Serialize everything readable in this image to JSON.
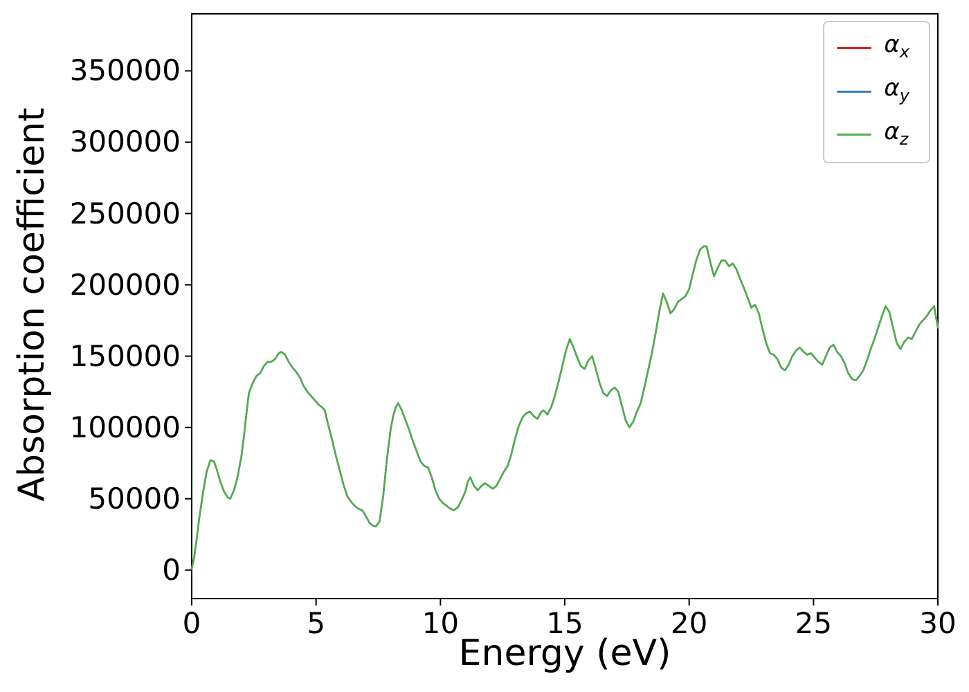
{
  "chart_data": {
    "type": "line",
    "title": "",
    "xlabel": "Energy (eV)",
    "ylabel": "Absorption coefficient",
    "xlim": [
      0,
      30
    ],
    "ylim": [
      -20000,
      390000
    ],
    "grid": false,
    "frame_color": "#000000",
    "background_color": "#ffffff",
    "legend_position": "upper right",
    "note": "All three series (alpha_x, alpha_y, alpha_z) coincide exactly; only the green alpha_z curve (drawn last) is visible.",
    "xticks": {
      "values": [
        0,
        5,
        10,
        15,
        20,
        25,
        30
      ],
      "labels": [
        "0",
        "5",
        "10",
        "15",
        "20",
        "25",
        "30"
      ]
    },
    "yticks": {
      "values": [
        0,
        50000,
        100000,
        150000,
        200000,
        250000,
        300000,
        350000
      ],
      "labels": [
        "0",
        "50000",
        "100000",
        "150000",
        "200000",
        "250000",
        "300000",
        "350000"
      ]
    },
    "series": [
      {
        "name": "alpha_x",
        "legend_symbol": "α",
        "legend_subscript": "x",
        "color": "#e41a1c",
        "values_shared_with": "chart_data.y"
      },
      {
        "name": "alpha_y",
        "legend_symbol": "α",
        "legend_subscript": "y",
        "color": "#377eb8",
        "values_shared_with": "chart_data.y"
      },
      {
        "name": "alpha_z",
        "legend_symbol": "α",
        "legend_subscript": "z",
        "color": "#4daf4a",
        "values_shared_with": "chart_data.y"
      }
    ],
    "x": [
      0,
      0.1,
      0.2,
      0.3,
      0.45,
      0.6,
      0.75,
      0.9,
      1.0,
      1.15,
      1.3,
      1.45,
      1.55,
      1.7,
      1.85,
      2.0,
      2.1,
      2.2,
      2.3,
      2.45,
      2.6,
      2.75,
      2.9,
      3.05,
      3.2,
      3.35,
      3.5,
      3.6,
      3.75,
      3.9,
      4.05,
      4.2,
      4.35,
      4.5,
      4.65,
      4.8,
      4.95,
      5.1,
      5.25,
      5.35,
      5.5,
      5.65,
      5.8,
      5.95,
      6.1,
      6.25,
      6.4,
      6.55,
      6.7,
      6.85,
      7.0,
      7.15,
      7.3,
      7.4,
      7.55,
      7.7,
      7.85,
      8.0,
      8.1,
      8.2,
      8.3,
      8.45,
      8.6,
      8.75,
      8.9,
      9.05,
      9.2,
      9.35,
      9.5,
      9.65,
      9.8,
      9.95,
      10.1,
      10.25,
      10.4,
      10.55,
      10.7,
      10.85,
      11.0,
      11.1,
      11.2,
      11.35,
      11.5,
      11.65,
      11.8,
      11.95,
      12.1,
      12.25,
      12.4,
      12.55,
      12.7,
      12.85,
      13.0,
      13.15,
      13.3,
      13.45,
      13.6,
      13.75,
      13.9,
      14.05,
      14.15,
      14.3,
      14.45,
      14.6,
      14.75,
      14.9,
      15.05,
      15.2,
      15.35,
      15.5,
      15.65,
      15.8,
      15.95,
      16.1,
      16.25,
      16.4,
      16.55,
      16.7,
      16.85,
      17.0,
      17.15,
      17.3,
      17.45,
      17.6,
      17.75,
      17.9,
      18.05,
      18.2,
      18.35,
      18.5,
      18.65,
      18.8,
      18.95,
      19.1,
      19.25,
      19.4,
      19.55,
      19.7,
      19.85,
      20.0,
      20.15,
      20.3,
      20.45,
      20.6,
      20.7,
      20.85,
      21.0,
      21.15,
      21.3,
      21.45,
      21.6,
      21.75,
      21.9,
      22.05,
      22.2,
      22.35,
      22.5,
      22.65,
      22.8,
      22.95,
      23.1,
      23.25,
      23.4,
      23.55,
      23.7,
      23.85,
      24.0,
      24.15,
      24.3,
      24.45,
      24.6,
      24.75,
      24.9,
      25.05,
      25.2,
      25.35,
      25.5,
      25.65,
      25.8,
      25.95,
      26.1,
      26.25,
      26.4,
      26.55,
      26.7,
      26.85,
      27.0,
      27.15,
      27.3,
      27.45,
      27.6,
      27.75,
      27.9,
      28.05,
      28.2,
      28.35,
      28.5,
      28.65,
      28.8,
      28.95,
      29.1,
      29.25,
      29.4,
      29.55,
      29.7,
      29.85,
      30.0
    ],
    "y": [
      1000,
      9000,
      22000,
      36000,
      54000,
      69000,
      77000,
      76000,
      71000,
      62000,
      55000,
      51000,
      50000,
      56000,
      66000,
      80000,
      94000,
      110000,
      124000,
      131000,
      136000,
      138000,
      143000,
      146000,
      146000,
      148000,
      152000,
      153000,
      151000,
      146000,
      142000,
      139000,
      135000,
      129000,
      125000,
      122000,
      119000,
      116000,
      114000,
      112000,
      101000,
      91000,
      80000,
      70000,
      60000,
      52000,
      48000,
      45000,
      43000,
      42000,
      38000,
      33000,
      31000,
      30500,
      34000,
      52000,
      78000,
      99000,
      108000,
      114000,
      117000,
      112000,
      105000,
      98000,
      90000,
      83000,
      76000,
      73000,
      72000,
      65000,
      56000,
      50000,
      47000,
      45000,
      43000,
      42000,
      44000,
      49000,
      55000,
      62000,
      65000,
      59000,
      56000,
      59000,
      61000,
      59000,
      57000,
      59000,
      64000,
      69000,
      73000,
      81000,
      92000,
      101000,
      107000,
      110000,
      111000,
      108000,
      106000,
      111000,
      112000,
      109000,
      114000,
      122000,
      132000,
      143000,
      154000,
      162000,
      156000,
      149000,
      143000,
      141000,
      147000,
      150000,
      141000,
      131000,
      124000,
      122000,
      126000,
      128000,
      125000,
      115000,
      105000,
      100000,
      104000,
      111000,
      117000,
      128000,
      140000,
      152000,
      166000,
      181000,
      194000,
      188000,
      180000,
      183000,
      188000,
      190000,
      192000,
      197000,
      208000,
      218000,
      225000,
      227000,
      227000,
      216000,
      206000,
      212000,
      217000,
      217000,
      213000,
      215000,
      211000,
      204000,
      198000,
      191000,
      184000,
      186000,
      180000,
      169000,
      159000,
      152000,
      151000,
      148000,
      142000,
      140000,
      144000,
      150000,
      154000,
      156000,
      153000,
      151000,
      152000,
      149000,
      146000,
      144000,
      150000,
      156000,
      158000,
      153000,
      150000,
      145000,
      138000,
      134000,
      133000,
      136000,
      140000,
      147000,
      155000,
      162000,
      170000,
      178000,
      185000,
      181000,
      170000,
      159000,
      155000,
      160000,
      163000,
      162000,
      167000,
      172000,
      175000,
      178000,
      182000,
      185000,
      170000
    ]
  }
}
